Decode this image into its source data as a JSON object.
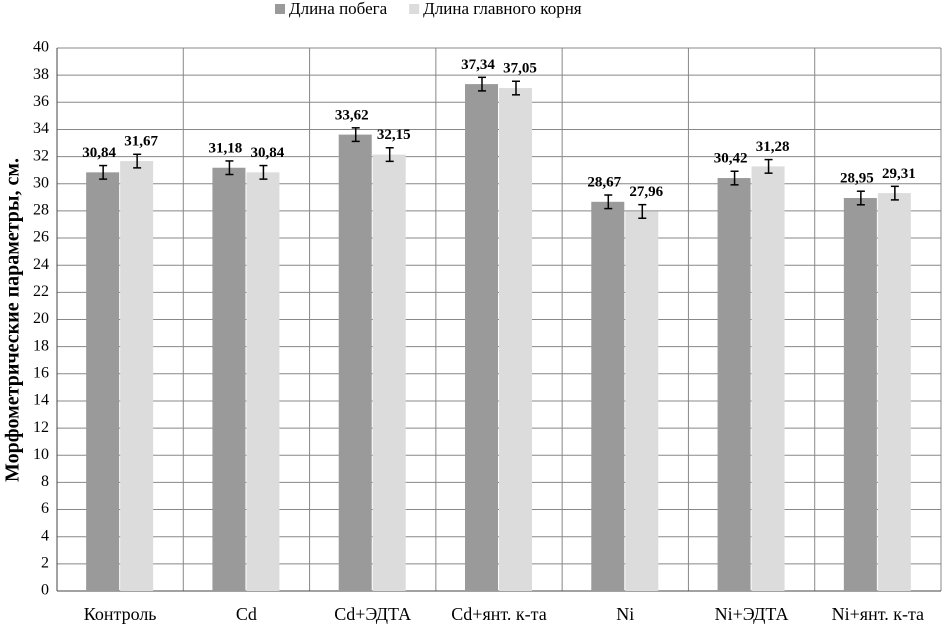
{
  "chart_data": {
    "type": "bar",
    "y_label": "Морфометрические параметры, см.",
    "categories": [
      "Контроль",
      "Cd",
      "Cd+ЭДТА",
      "Cd+янт. к-та",
      "Ni",
      "Ni+ЭДТА",
      "Ni+янт. к-та"
    ],
    "series": [
      {
        "name": "Длина побега",
        "color": "#9a9a9a",
        "values": [
          30.84,
          31.18,
          33.62,
          37.34,
          28.67,
          30.42,
          28.95
        ],
        "value_labels": [
          "30,84",
          "31,18",
          "33,62",
          "37,34",
          "28,67",
          "30,42",
          "28,95"
        ],
        "errors": [
          0.5,
          0.5,
          0.5,
          0.5,
          0.5,
          0.5,
          0.5
        ]
      },
      {
        "name": "Длина главного корня",
        "color": "#dcdcdc",
        "values": [
          31.67,
          30.84,
          32.15,
          37.05,
          27.96,
          31.28,
          29.31
        ],
        "value_labels": [
          "31,67",
          "30,84",
          "32,15",
          "37,05",
          "27,96",
          "31,28",
          "29,31"
        ],
        "errors": [
          0.5,
          0.5,
          0.5,
          0.5,
          0.5,
          0.5,
          0.5
        ]
      }
    ],
    "ylim": [
      0,
      40
    ],
    "yticks": [
      0,
      2,
      4,
      6,
      8,
      10,
      12,
      14,
      16,
      18,
      20,
      22,
      24,
      26,
      28,
      30,
      32,
      34,
      36,
      38,
      40
    ],
    "grid": true,
    "legend": "top"
  }
}
